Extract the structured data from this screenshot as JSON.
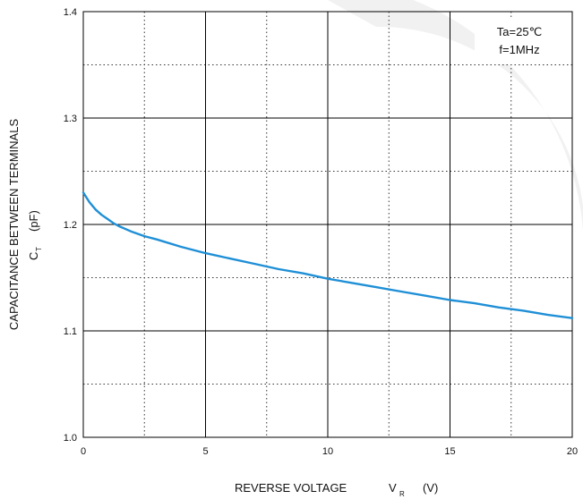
{
  "chart_data": {
    "type": "line",
    "xlabel": {
      "main": "REVERSE VOLTAGE",
      "symbol": "V",
      "subscript": "R",
      "unit": "(V)"
    },
    "ylabel": {
      "main": "CAPACITANCE BETWEEN TERMINALS",
      "symbol": "C",
      "subscript": "T",
      "unit": "(pF)"
    },
    "xlim": [
      0,
      20
    ],
    "ylim": [
      1.0,
      1.4
    ],
    "xticks": [
      0,
      5,
      10,
      15,
      20
    ],
    "xtick_labels": [
      "0",
      "5",
      "10",
      "15",
      "20"
    ],
    "yticks": [
      1.0,
      1.1,
      1.2,
      1.3,
      1.4
    ],
    "ytick_labels": [
      "1.0",
      "1.1",
      "1.2",
      "1.3",
      "1.4"
    ],
    "minor_x": [
      2.5,
      7.5,
      12.5,
      17.5
    ],
    "minor_y": [
      1.05,
      1.15,
      1.25,
      1.35
    ],
    "grid": true,
    "conditions": [
      "Ta=25℃",
      "f=1MHz"
    ],
    "series": [
      {
        "color": "#1f8fd6",
        "x": [
          0,
          0.25,
          0.5,
          0.75,
          1,
          1.25,
          1.5,
          2,
          2.5,
          3,
          4,
          5,
          6,
          7,
          8,
          9,
          10,
          11,
          12,
          13,
          14,
          15,
          16,
          17,
          18,
          19,
          20
        ],
        "y": [
          1.23,
          1.221,
          1.214,
          1.209,
          1.205,
          1.201,
          1.198,
          1.193,
          1.189,
          1.186,
          1.179,
          1.173,
          1.168,
          1.163,
          1.158,
          1.154,
          1.149,
          1.145,
          1.141,
          1.137,
          1.133,
          1.129,
          1.126,
          1.122,
          1.119,
          1.115,
          1.112
        ]
      }
    ]
  }
}
